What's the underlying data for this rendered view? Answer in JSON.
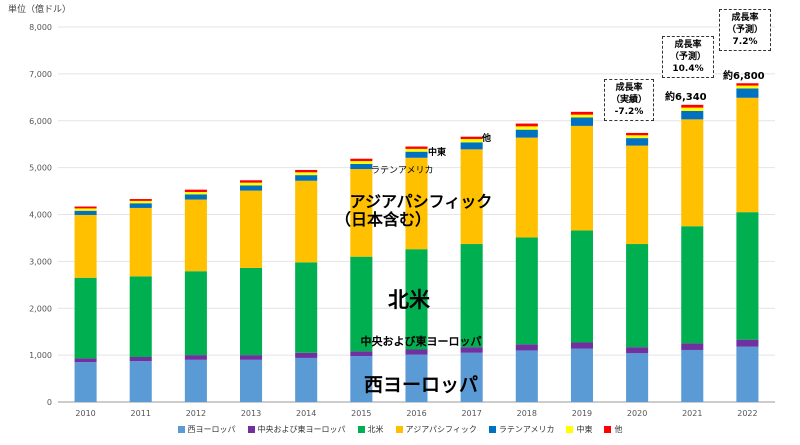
{
  "chart_data": {
    "type": "bar",
    "stacked": true,
    "unit_label": "単位（億ドル）",
    "categories": [
      "2010",
      "2011",
      "2012",
      "2013",
      "2014",
      "2015",
      "2016",
      "2017",
      "2018",
      "2019",
      "2020",
      "2021",
      "2022"
    ],
    "ylim": [
      0,
      8000
    ],
    "yticks": [
      "0",
      "1,000",
      "2,000",
      "3,000",
      "4,000",
      "5,000",
      "6,000",
      "7,000",
      "8,000"
    ],
    "series": [
      {
        "name": "西ヨーロッパ",
        "color": "#5B9BD5",
        "values": [
          850,
          870,
          900,
          900,
          940,
          980,
          1010,
          1050,
          1100,
          1140,
          1040,
          1110,
          1180
        ]
      },
      {
        "name": "中央および東ヨーロッパ",
        "color": "#7030A0",
        "values": [
          80,
          90,
          100,
          100,
          110,
          100,
          110,
          120,
          130,
          130,
          130,
          140,
          150
        ]
      },
      {
        "name": "北米",
        "color": "#00B050",
        "values": [
          1720,
          1720,
          1790,
          1860,
          1930,
          2020,
          2140,
          2200,
          2280,
          2390,
          2200,
          2500,
          2720
        ]
      },
      {
        "name": "アジアパシフィック",
        "color": "#FFC000",
        "values": [
          1340,
          1460,
          1530,
          1650,
          1740,
          1870,
          1950,
          2020,
          2130,
          2230,
          2100,
          2280,
          2440
        ]
      },
      {
        "name": "ラテンアメリカ",
        "color": "#0070C0",
        "values": [
          90,
          100,
          110,
          110,
          120,
          110,
          130,
          150,
          170,
          180,
          160,
          180,
          200
        ]
      },
      {
        "name": "中東",
        "color": "#FFFF00",
        "values": [
          50,
          50,
          50,
          60,
          60,
          60,
          60,
          70,
          70,
          60,
          60,
          70,
          60
        ]
      },
      {
        "name": "他",
        "color": "#FF0000",
        "values": [
          40,
          40,
          50,
          50,
          50,
          50,
          50,
          50,
          60,
          60,
          50,
          60,
          50
        ]
      }
    ],
    "inline_labels": [
      "西ヨーロッパ",
      "中央および東ヨーロッパ",
      "北米",
      "アジアパシフィック",
      "（日本含む）",
      "ラテンアメリカ",
      "中東",
      "他"
    ],
    "annotations": [
      {
        "year": "2020",
        "lines": [
          "成長率",
          "（実績）",
          "-7.2%"
        ]
      },
      {
        "year": "2021",
        "lines": [
          "成長率",
          "（予測）",
          "10.4%"
        ],
        "total": "約6,340"
      },
      {
        "year": "2022",
        "lines": [
          "成長率",
          "（予測）",
          "7.2%"
        ],
        "total": "約6,800"
      }
    ]
  }
}
